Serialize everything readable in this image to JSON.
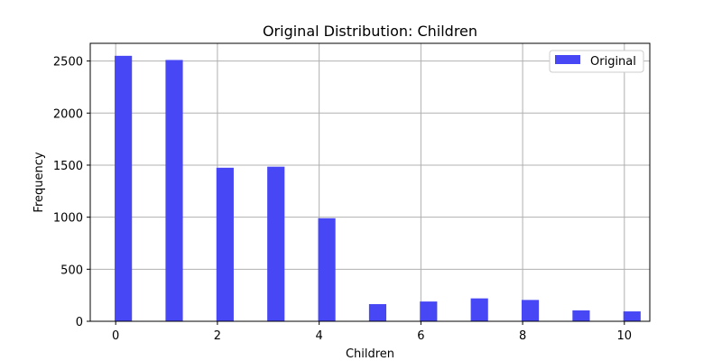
{
  "chart_data": {
    "type": "bar",
    "title": "Original Distribution: Children",
    "xlabel": "Children",
    "ylabel": "Frequency",
    "xlim": [
      -0.5,
      10.5
    ],
    "ylim": [
      0,
      2670
    ],
    "xticks": [
      0,
      2,
      4,
      6,
      8,
      10
    ],
    "yticks": [
      0,
      500,
      1000,
      1500,
      2000,
      2500
    ],
    "grid": true,
    "legend_position": "top-right",
    "series": [
      {
        "name": "Original",
        "color": "#4747f5",
        "x": [
          0,
          1,
          2,
          3,
          4,
          5,
          6,
          7,
          8,
          9,
          10
        ],
        "values": [
          2550,
          2510,
          1475,
          1485,
          990,
          165,
          190,
          220,
          205,
          105,
          95
        ]
      }
    ]
  }
}
